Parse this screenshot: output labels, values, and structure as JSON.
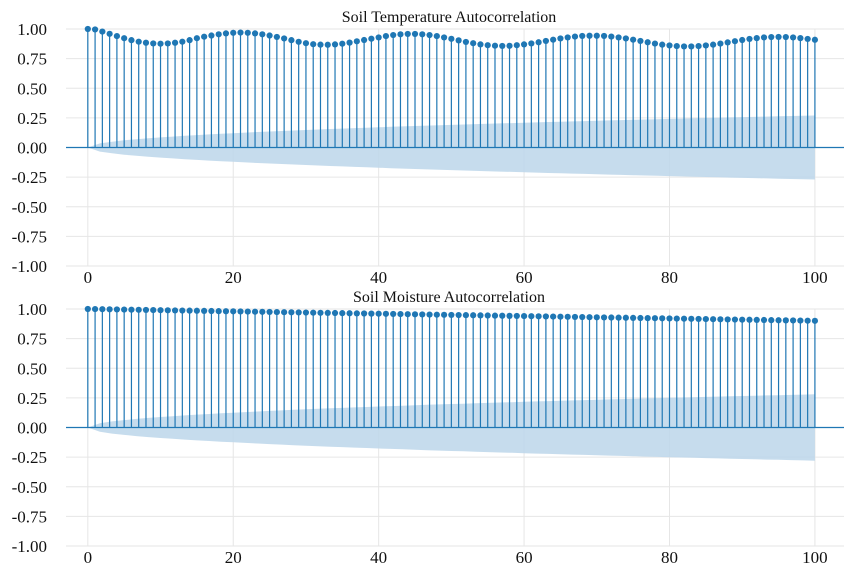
{
  "colors": {
    "stem": "#1f77b4",
    "confidence_band": "#bcd6ea",
    "zero_line": "#1f77b4",
    "grid": "#e6e6e6",
    "background": "#ffffff"
  },
  "chart_data": [
    {
      "type": "stem",
      "title": "Soil Temperature Autocorrelation",
      "xlabel": "",
      "ylabel": "",
      "xlim": [
        -3,
        104
      ],
      "ylim": [
        -1.0,
        1.0
      ],
      "x_ticks": [
        0,
        20,
        40,
        60,
        80,
        100
      ],
      "x_tick_labels": [
        "0",
        "20",
        "40",
        "60",
        "80",
        "100"
      ],
      "y_ticks": [
        1.0,
        0.75,
        0.5,
        0.25,
        0.0,
        -0.25,
        -0.5,
        -0.75,
        -1.0
      ],
      "y_tick_labels": [
        "1.00",
        "0.75",
        "0.50",
        "0.25",
        "0.00",
        "-0.25",
        "-0.50",
        "-0.75",
        "-1.00"
      ],
      "grid": true,
      "confidence_band": {
        "lag": [
          0,
          100
        ],
        "upper": [
          0.0,
          0.27
        ],
        "lower": [
          0.0,
          -0.27
        ],
        "shape": "sqrt"
      },
      "lags": [
        0,
        1,
        2,
        3,
        4,
        5,
        6,
        7,
        8,
        9,
        10,
        11,
        12,
        13,
        14,
        15,
        16,
        17,
        18,
        19,
        20,
        21,
        22,
        23,
        24,
        25,
        26,
        27,
        28,
        29,
        30,
        31,
        32,
        33,
        34,
        35,
        36,
        37,
        38,
        39,
        40,
        41,
        42,
        43,
        44,
        45,
        46,
        47,
        48,
        49,
        50,
        51,
        52,
        53,
        54,
        55,
        56,
        57,
        58,
        59,
        60,
        61,
        62,
        63,
        64,
        65,
        66,
        67,
        68,
        69,
        70,
        71,
        72,
        73,
        74,
        75,
        76,
        77,
        78,
        79,
        80,
        81,
        82,
        83,
        84,
        85,
        86,
        87,
        88,
        89,
        90,
        91,
        92,
        93,
        94,
        95,
        96,
        97,
        98,
        99,
        100
      ],
      "values": [
        1.0,
        0.996,
        0.978,
        0.959,
        0.94,
        0.922,
        0.906,
        0.893,
        0.884,
        0.878,
        0.876,
        0.878,
        0.884,
        0.893,
        0.906,
        0.922,
        0.935,
        0.945,
        0.955,
        0.963,
        0.968,
        0.97,
        0.968,
        0.963,
        0.955,
        0.945,
        0.933,
        0.92,
        0.906,
        0.892,
        0.88,
        0.872,
        0.868,
        0.867,
        0.87,
        0.876,
        0.885,
        0.896,
        0.907,
        0.918,
        0.929,
        0.94,
        0.949,
        0.955,
        0.958,
        0.958,
        0.955,
        0.949,
        0.94,
        0.929,
        0.917,
        0.904,
        0.891,
        0.88,
        0.87,
        0.863,
        0.859,
        0.857,
        0.858,
        0.863,
        0.87,
        0.878,
        0.888,
        0.899,
        0.91,
        0.92,
        0.929,
        0.936,
        0.941,
        0.943,
        0.943,
        0.941,
        0.936,
        0.929,
        0.92,
        0.91,
        0.899,
        0.888,
        0.877,
        0.868,
        0.861,
        0.856,
        0.853,
        0.853,
        0.856,
        0.861,
        0.868,
        0.877,
        0.887,
        0.897,
        0.907,
        0.916,
        0.923,
        0.929,
        0.932,
        0.933,
        0.932,
        0.929,
        0.923,
        0.916,
        0.909
      ]
    },
    {
      "type": "stem",
      "title": "Soil Moisture Autocorrelation",
      "xlabel": "",
      "ylabel": "",
      "xlim": [
        -3,
        104
      ],
      "ylim": [
        -1.0,
        1.0
      ],
      "x_ticks": [
        0,
        20,
        40,
        60,
        80,
        100
      ],
      "x_tick_labels": [
        "0",
        "20",
        "40",
        "60",
        "80",
        "100"
      ],
      "y_ticks": [
        1.0,
        0.75,
        0.5,
        0.25,
        0.0,
        -0.25,
        -0.5,
        -0.75,
        -1.0
      ],
      "y_tick_labels": [
        "1.00",
        "0.75",
        "0.50",
        "0.25",
        "0.00",
        "-0.25",
        "-0.50",
        "-0.75",
        "-1.00"
      ],
      "grid": true,
      "confidence_band": {
        "lag": [
          0,
          100
        ],
        "upper": [
          0.0,
          0.28
        ],
        "lower": [
          0.0,
          -0.28
        ],
        "shape": "sqrt"
      },
      "lags": [
        0,
        1,
        2,
        3,
        4,
        5,
        6,
        7,
        8,
        9,
        10,
        11,
        12,
        13,
        14,
        15,
        16,
        17,
        18,
        19,
        20,
        21,
        22,
        23,
        24,
        25,
        26,
        27,
        28,
        29,
        30,
        31,
        32,
        33,
        34,
        35,
        36,
        37,
        38,
        39,
        40,
        41,
        42,
        43,
        44,
        45,
        46,
        47,
        48,
        49,
        50,
        51,
        52,
        53,
        54,
        55,
        56,
        57,
        58,
        59,
        60,
        61,
        62,
        63,
        64,
        65,
        66,
        67,
        68,
        69,
        70,
        71,
        72,
        73,
        74,
        75,
        76,
        77,
        78,
        79,
        80,
        81,
        82,
        83,
        84,
        85,
        86,
        87,
        88,
        89,
        90,
        91,
        92,
        93,
        94,
        95,
        96,
        97,
        98,
        99,
        100
      ],
      "values": [
        1.0,
        0.999,
        0.998,
        0.997,
        0.996,
        0.995,
        0.994,
        0.993,
        0.992,
        0.991,
        0.99,
        0.989,
        0.988,
        0.987,
        0.986,
        0.985,
        0.984,
        0.983,
        0.982,
        0.981,
        0.98,
        0.979,
        0.978,
        0.977,
        0.976,
        0.975,
        0.974,
        0.973,
        0.972,
        0.971,
        0.97,
        0.969,
        0.968,
        0.967,
        0.966,
        0.965,
        0.964,
        0.963,
        0.962,
        0.961,
        0.96,
        0.959,
        0.958,
        0.957,
        0.956,
        0.955,
        0.954,
        0.953,
        0.952,
        0.951,
        0.95,
        0.949,
        0.948,
        0.947,
        0.946,
        0.945,
        0.944,
        0.943,
        0.942,
        0.941,
        0.94,
        0.939,
        0.938,
        0.937,
        0.936,
        0.935,
        0.934,
        0.933,
        0.932,
        0.931,
        0.93,
        0.929,
        0.928,
        0.927,
        0.926,
        0.925,
        0.924,
        0.923,
        0.922,
        0.921,
        0.92,
        0.919,
        0.918,
        0.917,
        0.916,
        0.915,
        0.914,
        0.913,
        0.912,
        0.911,
        0.91,
        0.909,
        0.908,
        0.907,
        0.906,
        0.905,
        0.904,
        0.903,
        0.902,
        0.901,
        0.9
      ]
    }
  ]
}
